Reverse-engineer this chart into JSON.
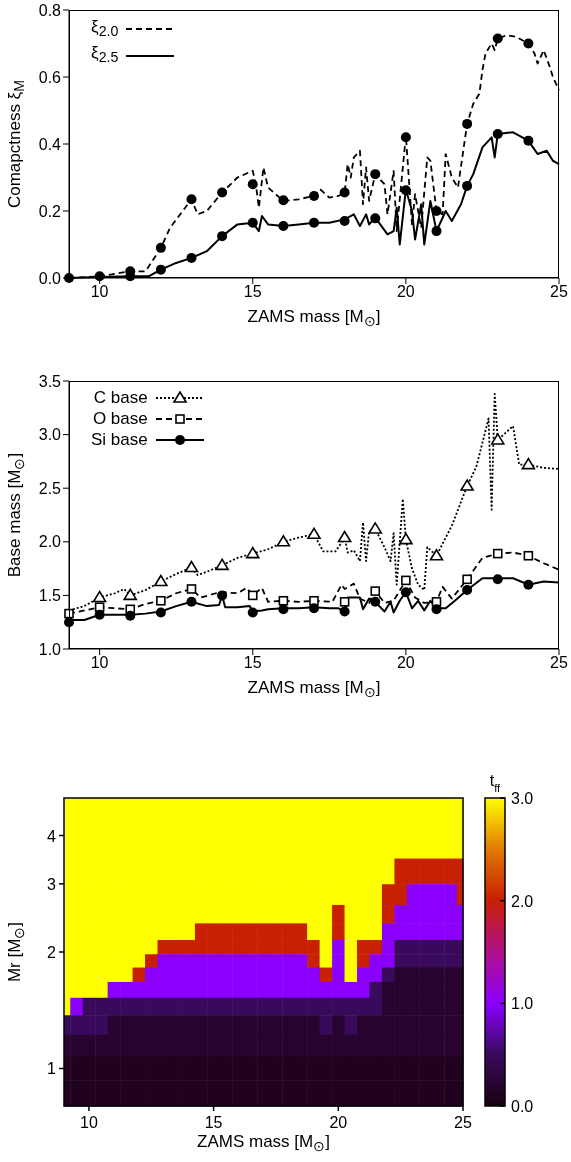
{
  "chart_data": [
    {
      "type": "line",
      "xlabel": "ZAMS mass [M$_{⊙}$]",
      "ylabel": "Comapctness ξ$_{M}$",
      "legend": "top left",
      "xlim": [
        9,
        25
      ],
      "xticks": [
        10,
        15,
        20,
        25
      ],
      "ylim": [
        0,
        0.8
      ],
      "yticks": [
        {
          "value": 0,
          "label": "0.0"
        },
        {
          "value": 0.2,
          "label": "0.2"
        },
        {
          "value": 0.4,
          "label": "0.4"
        },
        {
          "value": 0.6,
          "label": "0.6"
        },
        {
          "value": 0.8,
          "label": "0.8"
        }
      ],
      "series": [
        {
          "name": "ξ$_{2.0}$",
          "type": "line",
          "color": "#000000",
          "line_style": "dashed",
          "marker": "none",
          "x": [
            9,
            10,
            11,
            11.5,
            12,
            12.3,
            13,
            13.2,
            13.5,
            14,
            14.5,
            15,
            15.1,
            15.2,
            15.35,
            15.5,
            16,
            16.5,
            17,
            17.2,
            17.5,
            17.8,
            18,
            18.1,
            18.2,
            18.3,
            18.5,
            18.6,
            18.7,
            18.8,
            19,
            19.3,
            19.4,
            19.6,
            19.7,
            20,
            20.2,
            20.3,
            20.5,
            20.7,
            20.8,
            21,
            21.2,
            21.3,
            21.5,
            21.7,
            22,
            22.2,
            22.4,
            22.5,
            22.6,
            22.8,
            22.9,
            23,
            23.3,
            23.6,
            24,
            24.2,
            24.3,
            24.5,
            24.7,
            24.8,
            25
          ],
          "values": [
            0,
            0.005,
            0.02,
            0.02,
            0.09,
            0.15,
            0.235,
            0.19,
            0.2,
            0.255,
            0.3,
            0.32,
            0.28,
            0.21,
            0.33,
            0.27,
            0.23,
            0.235,
            0.245,
            0.265,
            0.24,
            0.245,
            0.255,
            0.34,
            0.3,
            0.36,
            0.38,
            0.22,
            0.33,
            0.23,
            0.31,
            0.28,
            0.19,
            0.32,
            0.14,
            0.425,
            0.16,
            0.25,
            0.15,
            0.36,
            0.35,
            0.2,
            0.19,
            0.37,
            0.3,
            0.27,
            0.46,
            0.52,
            0.55,
            0.62,
            0.67,
            0.7,
            0.68,
            0.715,
            0.725,
            0.72,
            0.7,
            0.67,
            0.64,
            0.68,
            0.63,
            0.6,
            0.56
          ]
        },
        {
          "name": "ξ$_{2.5}$",
          "type": "line",
          "color": "#000000",
          "line_style": "solid",
          "marker": "none",
          "x": [
            9,
            10,
            11,
            11.6,
            12,
            12.5,
            13,
            13.5,
            14,
            14.5,
            15,
            15.2,
            15.3,
            15.5,
            16,
            16.5,
            17,
            17.5,
            18,
            18.3,
            18.5,
            18.7,
            18.8,
            19,
            19.4,
            19.6,
            19.7,
            19.8,
            20,
            20.2,
            20.3,
            20.5,
            20.6,
            20.8,
            21,
            21.3,
            21.5,
            21.8,
            22,
            22.2,
            22.5,
            22.8,
            22.9,
            23,
            23.5,
            24,
            24.3,
            24.6,
            24.8,
            25
          ],
          "values": [
            0,
            0.003,
            0.005,
            0.005,
            0.025,
            0.045,
            0.06,
            0.08,
            0.125,
            0.16,
            0.165,
            0.14,
            0.185,
            0.16,
            0.155,
            0.16,
            0.165,
            0.165,
            0.175,
            0.19,
            0.155,
            0.19,
            0.16,
            0.18,
            0.13,
            0.14,
            0.21,
            0.1,
            0.265,
            0.2,
            0.115,
            0.22,
            0.1,
            0.23,
            0.14,
            0.2,
            0.17,
            0.22,
            0.275,
            0.31,
            0.39,
            0.42,
            0.36,
            0.43,
            0.435,
            0.41,
            0.37,
            0.38,
            0.35,
            0.34
          ]
        },
        {
          "type": "scatter",
          "color": "#000000",
          "marker": "circle",
          "x": [
            9,
            10,
            11,
            12,
            13,
            14,
            15,
            16,
            17,
            18,
            19,
            20,
            21,
            22,
            23,
            24
          ],
          "values": [
            0,
            0.005,
            0.02,
            0.09,
            0.235,
            0.255,
            0.28,
            0.232,
            0.245,
            0.255,
            0.31,
            0.42,
            0.2,
            0.46,
            0.715,
            0.7
          ]
        },
        {
          "type": "scatter",
          "color": "#000000",
          "marker": "circle",
          "x": [
            11,
            12,
            13,
            14,
            15,
            16,
            17,
            18,
            19,
            20,
            21,
            22,
            23,
            24
          ],
          "values": [
            0.005,
            0.025,
            0.06,
            0.125,
            0.165,
            0.155,
            0.165,
            0.17,
            0.178,
            0.262,
            0.14,
            0.275,
            0.43,
            0.41
          ]
        }
      ]
    },
    {
      "type": "line",
      "xlabel": "ZAMS mass [M$_{⊙}$]",
      "ylabel": "Base mass [M$_{⊙}$]",
      "legend": "top left",
      "xlim": [
        9,
        25
      ],
      "xticks": [
        10,
        15,
        20,
        25
      ],
      "ylim": [
        1,
        3.5
      ],
      "yticks": [
        {
          "value": 1,
          "label": "1.0"
        },
        {
          "value": 1.5,
          "label": "1.5"
        },
        {
          "value": 2,
          "label": "2.0"
        },
        {
          "value": 2.5,
          "label": "2.5"
        },
        {
          "value": 3,
          "label": "3.0"
        },
        {
          "value": 3.5,
          "label": "3.5"
        }
      ],
      "series": [
        {
          "name": "C base",
          "type": "line",
          "color": "#000000",
          "line_style": "dotted",
          "x": [
            9,
            9.5,
            10,
            10.5,
            10.8,
            11,
            11.5,
            12,
            12.5,
            13,
            13.2,
            13.5,
            14,
            14.5,
            15,
            15.5,
            16,
            16.5,
            17,
            17.3,
            17.7,
            17.8,
            18,
            18.1,
            18.3,
            18.5,
            18.6,
            18.7,
            18.8,
            19,
            19.3,
            19.5,
            19.6,
            19.7,
            19.9,
            20,
            20.2,
            20.4,
            20.6,
            20.7,
            21,
            21.5,
            22,
            22.3,
            22.7,
            22.8,
            22.9,
            23,
            23.5,
            23.7,
            24,
            24.5,
            25
          ],
          "values": [
            1.36,
            1.4,
            1.48,
            1.52,
            1.56,
            1.5,
            1.55,
            1.63,
            1.7,
            1.76,
            1.69,
            1.72,
            1.78,
            1.85,
            1.89,
            1.93,
            2.0,
            2.04,
            2.07,
            1.91,
            1.91,
            1.95,
            2.04,
            1.9,
            1.92,
            1.82,
            2.18,
            1.82,
            2.1,
            2.12,
            1.95,
            1.82,
            2.08,
            1.6,
            2.4,
            2.02,
            1.75,
            1.6,
            1.55,
            1.95,
            1.87,
            2.15,
            2.52,
            2.7,
            3.15,
            2.3,
            3.38,
            2.95,
            3.08,
            2.72,
            2.72,
            2.69,
            2.68
          ]
        },
        {
          "name": "O base",
          "type": "line",
          "color": "#000000",
          "line_style": "dashed",
          "x": [
            9,
            10,
            11,
            11.5,
            12,
            12.5,
            13,
            13.3,
            13.8,
            14,
            14.5,
            14.8,
            15,
            15.3,
            15.5,
            16,
            16.5,
            17,
            17.6,
            17.9,
            18,
            18.3,
            18.5,
            18.8,
            19,
            19.3,
            19.6,
            20,
            20.3,
            20.6,
            21,
            21.2,
            21.5,
            22,
            22.5,
            23,
            23.5,
            24,
            24.5,
            25
          ],
          "values": [
            1.33,
            1.39,
            1.37,
            1.42,
            1.45,
            1.52,
            1.56,
            1.48,
            1.52,
            1.53,
            1.52,
            1.57,
            1.5,
            1.57,
            1.44,
            1.45,
            1.44,
            1.45,
            1.44,
            1.6,
            1.56,
            1.61,
            1.47,
            1.43,
            1.54,
            1.43,
            1.45,
            1.64,
            1.48,
            1.43,
            1.44,
            1.58,
            1.47,
            1.65,
            1.85,
            1.89,
            1.9,
            1.87,
            1.8,
            1.74
          ]
        },
        {
          "name": "Si base",
          "type": "line",
          "color": "#000000",
          "line_style": "solid",
          "x": [
            9,
            9.5,
            10,
            10.5,
            11,
            11.5,
            12,
            12.5,
            13,
            13.5,
            13.9,
            14,
            14.1,
            14.5,
            14.9,
            15,
            15.3,
            15.5,
            16,
            16.5,
            17,
            17.5,
            17.8,
            18,
            18.1,
            18.5,
            18.6,
            18.8,
            19,
            19.3,
            19.5,
            19.6,
            19.8,
            20,
            20.2,
            20.4,
            20.6,
            20.8,
            21,
            21.3,
            21.6,
            22,
            22.5,
            23,
            23.5,
            24,
            24.5,
            25
          ],
          "values": [
            1.27,
            1.27,
            1.32,
            1.32,
            1.32,
            1.33,
            1.35,
            1.4,
            1.44,
            1.4,
            1.41,
            1.5,
            1.39,
            1.39,
            1.4,
            1.35,
            1.36,
            1.37,
            1.38,
            1.38,
            1.39,
            1.38,
            1.38,
            1.35,
            1.48,
            1.48,
            1.37,
            1.47,
            1.44,
            1.35,
            1.44,
            1.34,
            1.45,
            1.53,
            1.38,
            1.45,
            1.36,
            1.45,
            1.38,
            1.38,
            1.45,
            1.55,
            1.66,
            1.66,
            1.66,
            1.6,
            1.63,
            1.62
          ]
        },
        {
          "type": "scatter",
          "color": "#000000",
          "marker": "triangle",
          "x": [
            10,
            11,
            12,
            13,
            14,
            15,
            16,
            17,
            18,
            19,
            20,
            21,
            22,
            23,
            24
          ],
          "values": [
            1.48,
            1.5,
            1.63,
            1.76,
            1.78,
            1.89,
            2.0,
            2.07,
            2.04,
            2.12,
            2.02,
            1.87,
            2.52,
            2.95,
            2.72
          ]
        },
        {
          "type": "scatter",
          "color": "#000000",
          "marker": "square",
          "x": [
            9,
            10,
            11,
            12,
            13,
            14,
            15,
            16,
            17,
            18,
            19,
            20,
            21,
            22,
            23,
            24
          ],
          "values": [
            1.33,
            1.39,
            1.37,
            1.45,
            1.56,
            null,
            1.5,
            1.45,
            1.45,
            1.44,
            1.54,
            1.64,
            1.44,
            1.65,
            1.89,
            1.87
          ]
        },
        {
          "type": "scatter",
          "color": "#000000",
          "marker": "circle",
          "x": [
            9,
            10,
            11,
            12,
            13,
            14,
            15,
            16,
            17,
            18,
            19,
            20,
            21,
            22,
            23,
            24
          ],
          "values": [
            1.25,
            1.32,
            1.31,
            1.34,
            1.44,
            1.5,
            1.34,
            1.37,
            1.38,
            1.35,
            1.44,
            1.53,
            1.37,
            1.55,
            1.65,
            1.6
          ]
        }
      ]
    },
    {
      "type": "heatmap",
      "xlabel": "ZAMS mass [M$_{⊙}$]",
      "ylabel": "Mr [M$_{⊙}$]",
      "clabel": "t$_{ff}$",
      "log": "y",
      "xlim": [
        9,
        25
      ],
      "xticks": [
        10,
        15,
        20,
        25
      ],
      "ylim": [
        0.8,
        5
      ],
      "yticks": [
        1,
        2,
        3,
        4
      ],
      "clim": [
        0,
        3
      ],
      "cticks": [
        {
          "value": 0,
          "label": "0.0"
        },
        {
          "value": 1,
          "label": "1.0"
        },
        {
          "value": 2,
          "label": "2.0"
        },
        {
          "value": 3,
          "label": "3.0"
        }
      ],
      "x": [
        9,
        9.5,
        10,
        10.5,
        11,
        11.5,
        12,
        12.5,
        13,
        13.5,
        14,
        14.5,
        15,
        15.5,
        16,
        16.5,
        17,
        17.5,
        18,
        18.5,
        19,
        19.5,
        20,
        20.5,
        21,
        21.5,
        22,
        22.5,
        23,
        23.5,
        24,
        24.5,
        25
      ],
      "y": [
        4.5,
        3.8,
        3.2,
        2.8,
        2.5,
        2.25,
        2.05,
        1.9,
        1.75,
        1.6,
        1.45,
        1.3,
        1.15,
        1.0,
        0.87
      ],
      "cells": [
        [
          3,
          3,
          3,
          3,
          3,
          3,
          3,
          3,
          3,
          3,
          3,
          3,
          3,
          3,
          3,
          3,
          3,
          3,
          3,
          3,
          3,
          3,
          3,
          3,
          3,
          3,
          3,
          3,
          3,
          3,
          3,
          3,
          3
        ],
        [
          3,
          3,
          3,
          3,
          3,
          3,
          3,
          3,
          3,
          3,
          3,
          3,
          3,
          3,
          3,
          3,
          3,
          3,
          3,
          3,
          3,
          3,
          3,
          3,
          3,
          3,
          3,
          3,
          3,
          3,
          3,
          3,
          3
        ],
        [
          3,
          3,
          3,
          3,
          3,
          3,
          3,
          3,
          3,
          3,
          3,
          3,
          3,
          3,
          3,
          3,
          3,
          3,
          3,
          3,
          3,
          3,
          3,
          3,
          3,
          3,
          3,
          2,
          2,
          2,
          2,
          2,
          2
        ],
        [
          3,
          3,
          3,
          3,
          3,
          3,
          3,
          3,
          3,
          3,
          3,
          3,
          3,
          3,
          3,
          3,
          3,
          3,
          3,
          3,
          3,
          3,
          3,
          3,
          3,
          3,
          2,
          2,
          1,
          1,
          1,
          1,
          2
        ],
        [
          3,
          3,
          3,
          3,
          3,
          3,
          3,
          3,
          3,
          3,
          3,
          3,
          3,
          3,
          3,
          3,
          3,
          3,
          3,
          3,
          3,
          3,
          2,
          3,
          3,
          3,
          2,
          1,
          1,
          1,
          1,
          1,
          1
        ],
        [
          3,
          3,
          3,
          3,
          3,
          3,
          3,
          3,
          3,
          3,
          3,
          2,
          2,
          2,
          2,
          2,
          2,
          2,
          2,
          2,
          3,
          3,
          2,
          3,
          3,
          3,
          1,
          1,
          1,
          1,
          1,
          1,
          1
        ],
        [
          3,
          3,
          3,
          3,
          3,
          3,
          3,
          3,
          2,
          2,
          2,
          2,
          2,
          2,
          2,
          2,
          2,
          2,
          2,
          2,
          2,
          3,
          1,
          3,
          2,
          2,
          1,
          0.5,
          0.5,
          0.5,
          0.5,
          0.5,
          0.5
        ],
        [
          3,
          3,
          3,
          3,
          3,
          3,
          3,
          2,
          1,
          1,
          1,
          1,
          1,
          1,
          1,
          1,
          1,
          1,
          1,
          1,
          2,
          3,
          1,
          3,
          2,
          1,
          1,
          0.5,
          0.5,
          0.5,
          0.5,
          0.5,
          0.5
        ],
        [
          3,
          3,
          3,
          3,
          3,
          3,
          2,
          1,
          1,
          1,
          1,
          1,
          1,
          1,
          1,
          1,
          1,
          1,
          1,
          1,
          1,
          2,
          1,
          3,
          1,
          1,
          0.5,
          0.2,
          0.2,
          0.2,
          0.2,
          0.2,
          0.2
        ],
        [
          3,
          3,
          3,
          3,
          1,
          1,
          1,
          1,
          1,
          1,
          1,
          1,
          1,
          1,
          1,
          1,
          1,
          1,
          1,
          1,
          1,
          1,
          1,
          1,
          1,
          0.5,
          0.2,
          0.2,
          0.2,
          0.2,
          0.2,
          0.2,
          0.2
        ],
        [
          3,
          1,
          0.5,
          0.5,
          0.5,
          0.5,
          0.5,
          0.5,
          0.5,
          0.5,
          0.5,
          0.5,
          0.5,
          0.5,
          0.5,
          0.5,
          0.5,
          0.5,
          0.5,
          0.5,
          0.5,
          0.5,
          0.5,
          0.5,
          0.5,
          0.5,
          0.2,
          0.2,
          0.2,
          0.2,
          0.2,
          0.2,
          0.2
        ],
        [
          0.5,
          0.5,
          0.5,
          0.5,
          0.2,
          0.2,
          0.2,
          0.2,
          0.2,
          0.2,
          0.2,
          0.2,
          0.2,
          0.2,
          0.2,
          0.2,
          0.2,
          0.2,
          0.2,
          0.2,
          0.2,
          0.5,
          0.2,
          0.5,
          0.2,
          0.2,
          0.2,
          0.2,
          0.2,
          0.2,
          0.2,
          0.2,
          0.2
        ],
        [
          0.2,
          0.2,
          0.2,
          0.2,
          0.2,
          0.2,
          0.2,
          0.2,
          0.2,
          0.2,
          0.2,
          0.2,
          0.2,
          0.2,
          0.2,
          0.2,
          0.2,
          0.2,
          0.2,
          0.2,
          0.2,
          0.2,
          0.2,
          0.2,
          0.2,
          0.2,
          0.2,
          0.2,
          0.2,
          0.2,
          0.2,
          0.2,
          0.2
        ],
        [
          0.1,
          0.1,
          0.1,
          0.1,
          0.1,
          0.1,
          0.1,
          0.1,
          0.1,
          0.1,
          0.1,
          0.1,
          0.1,
          0.1,
          0.1,
          0.1,
          0.1,
          0.1,
          0.1,
          0.1,
          0.1,
          0.1,
          0.1,
          0.1,
          0.1,
          0.1,
          0.1,
          0.1,
          0.1,
          0.1,
          0.1,
          0.1,
          0.1
        ],
        [
          0.1,
          0.1,
          0.1,
          0.1,
          0.1,
          0.1,
          0.1,
          0.1,
          0.1,
          0.1,
          0.1,
          0.1,
          0.1,
          0.1,
          0.1,
          0.1,
          0.1,
          0.1,
          0.1,
          0.1,
          0.1,
          0.1,
          0.1,
          0.1,
          0.1,
          0.1,
          0.1,
          0.1,
          0.1,
          0.1,
          0.1,
          0.1,
          0.1
        ]
      ]
    }
  ]
}
